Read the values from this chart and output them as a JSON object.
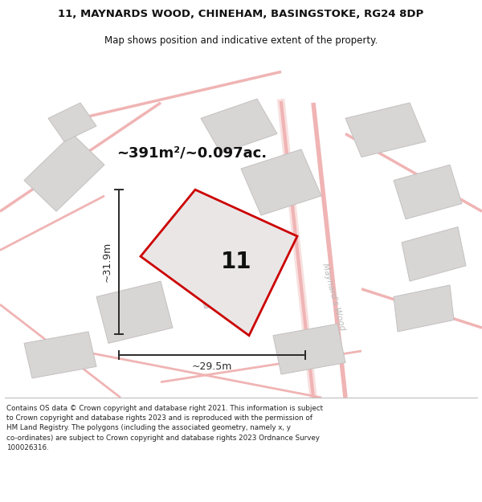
{
  "title_line1": "11, MAYNARDS WOOD, CHINEHAM, BASINGSTOKE, RG24 8DP",
  "title_line2": "Map shows position and indicative extent of the property.",
  "area_label": "~391m²/~0.097ac.",
  "plot_number": "11",
  "dim_height": "~31.9m",
  "dim_width": "~29.5m",
  "street_label": "Maynard's Wood",
  "footer_line1": "Contains OS data © Crown copyright and database right 2021. This information is subject",
  "footer_line2": "to Crown copyright and database rights 2023 and is reproduced with the permission of",
  "footer_line3": "HM Land Registry. The polygons (including the associated geometry, namely x, y",
  "footer_line4": "co-ordinates) are subject to Crown copyright and database rights 2023 Ordnance Survey",
  "footer_line5": "100026316.",
  "bg_color": "#f0eeee",
  "map_bg": "#f5f2f2",
  "plot_fill": "#e8e4e4",
  "plot_outline": "#cc0000",
  "neighbor_fill": "#d8d5d5",
  "neighbor_outline": "#c4c0c0",
  "road_color": "#f0b4b4",
  "dim_line_color": "#2a2a2a",
  "text_color": "#111111",
  "street_label_color": "#bbbbbb",
  "white": "#ffffff",
  "main_plot": [
    [
      243,
      172
    ],
    [
      330,
      142
    ],
    [
      380,
      258
    ],
    [
      292,
      290
    ],
    [
      202,
      260
    ]
  ],
  "xlim": [
    0,
    600
  ],
  "ylim": [
    0,
    440
  ]
}
